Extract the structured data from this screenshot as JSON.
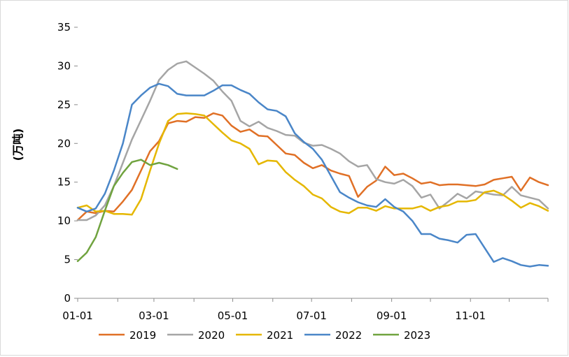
{
  "chart_data": {
    "type": "line",
    "ylabel": "(万吨)",
    "xlabel": "",
    "ylim": [
      0,
      35
    ],
    "yticks": [
      0,
      5,
      10,
      15,
      20,
      25,
      30,
      35
    ],
    "xlim": [
      "01-01",
      "12-31"
    ],
    "xtick_labels": [
      "01-01",
      "03-01",
      "05-01",
      "07-01",
      "09-01",
      "11-01"
    ],
    "grid": false,
    "legend_position": "bottom",
    "series": [
      {
        "name": "2019",
        "color": "#E07026",
        "points": [
          [
            "01-01",
            10.1
          ],
          [
            "01-08",
            11.2
          ],
          [
            "01-15",
            11.0
          ],
          [
            "01-22",
            11.3
          ],
          [
            "01-29",
            11.2
          ],
          [
            "02-05",
            12.5
          ],
          [
            "02-12",
            14.0
          ],
          [
            "02-19",
            16.5
          ],
          [
            "02-26",
            19.0
          ],
          [
            "03-05",
            20.3
          ],
          [
            "03-12",
            22.6
          ],
          [
            "03-19",
            22.9
          ],
          [
            "03-26",
            22.8
          ],
          [
            "04-02",
            23.4
          ],
          [
            "04-09",
            23.3
          ],
          [
            "04-16",
            23.9
          ],
          [
            "04-23",
            23.6
          ],
          [
            "04-30",
            22.3
          ],
          [
            "05-07",
            21.5
          ],
          [
            "05-14",
            21.8
          ],
          [
            "05-21",
            21.0
          ],
          [
            "05-28",
            20.9
          ],
          [
            "06-04",
            19.8
          ],
          [
            "06-11",
            18.7
          ],
          [
            "06-18",
            18.5
          ],
          [
            "06-25",
            17.5
          ],
          [
            "07-02",
            16.8
          ],
          [
            "07-09",
            17.2
          ],
          [
            "07-16",
            16.5
          ],
          [
            "07-23",
            16.1
          ],
          [
            "07-30",
            15.8
          ],
          [
            "08-06",
            13.1
          ],
          [
            "08-13",
            14.4
          ],
          [
            "08-20",
            15.2
          ],
          [
            "08-27",
            17.0
          ],
          [
            "09-03",
            15.9
          ],
          [
            "09-10",
            16.1
          ],
          [
            "09-17",
            15.5
          ],
          [
            "09-24",
            14.8
          ],
          [
            "10-01",
            15.0
          ],
          [
            "10-08",
            14.6
          ],
          [
            "10-15",
            14.7
          ],
          [
            "10-22",
            14.7
          ],
          [
            "10-29",
            14.6
          ],
          [
            "11-05",
            14.5
          ],
          [
            "11-12",
            14.7
          ],
          [
            "11-19",
            15.3
          ],
          [
            "11-26",
            15.5
          ],
          [
            "12-03",
            15.7
          ],
          [
            "12-10",
            13.9
          ],
          [
            "12-17",
            15.6
          ],
          [
            "12-24",
            15.0
          ],
          [
            "12-31",
            14.6
          ]
        ]
      },
      {
        "name": "2020",
        "color": "#A5A5A5",
        "points": [
          [
            "01-01",
            10.1
          ],
          [
            "01-08",
            10.1
          ],
          [
            "01-15",
            10.7
          ],
          [
            "01-22",
            12.0
          ],
          [
            "01-29",
            14.5
          ],
          [
            "02-05",
            17.5
          ],
          [
            "02-12",
            20.5
          ],
          [
            "02-19",
            23.0
          ],
          [
            "02-26",
            25.5
          ],
          [
            "03-05",
            28.2
          ],
          [
            "03-12",
            29.5
          ],
          [
            "03-19",
            30.3
          ],
          [
            "03-26",
            30.6
          ],
          [
            "04-02",
            29.8
          ],
          [
            "04-09",
            29.0
          ],
          [
            "04-16",
            28.1
          ],
          [
            "04-23",
            26.7
          ],
          [
            "04-30",
            25.5
          ],
          [
            "05-07",
            22.9
          ],
          [
            "05-14",
            22.2
          ],
          [
            "05-21",
            22.8
          ],
          [
            "05-28",
            22.0
          ],
          [
            "06-04",
            21.6
          ],
          [
            "06-11",
            21.1
          ],
          [
            "06-18",
            21.0
          ],
          [
            "06-25",
            20.1
          ],
          [
            "07-02",
            19.7
          ],
          [
            "07-09",
            19.8
          ],
          [
            "07-16",
            19.3
          ],
          [
            "07-23",
            18.7
          ],
          [
            "07-30",
            17.7
          ],
          [
            "08-06",
            17.0
          ],
          [
            "08-13",
            17.2
          ],
          [
            "08-20",
            15.4
          ],
          [
            "08-27",
            15.0
          ],
          [
            "09-03",
            14.8
          ],
          [
            "09-10",
            15.3
          ],
          [
            "09-17",
            14.5
          ],
          [
            "09-24",
            13.0
          ],
          [
            "10-01",
            13.4
          ],
          [
            "10-08",
            11.6
          ],
          [
            "10-15",
            12.5
          ],
          [
            "10-22",
            13.5
          ],
          [
            "10-29",
            12.9
          ],
          [
            "11-05",
            13.8
          ],
          [
            "11-12",
            13.6
          ],
          [
            "11-19",
            13.4
          ],
          [
            "11-26",
            13.3
          ],
          [
            "12-03",
            14.4
          ],
          [
            "12-10",
            13.3
          ],
          [
            "12-17",
            13.0
          ],
          [
            "12-24",
            12.7
          ],
          [
            "12-31",
            11.6
          ]
        ]
      },
      {
        "name": "2021",
        "color": "#E5B700",
        "points": [
          [
            "01-01",
            11.7
          ],
          [
            "01-08",
            12.0
          ],
          [
            "01-15",
            11.2
          ],
          [
            "01-22",
            11.3
          ],
          [
            "01-29",
            10.9
          ],
          [
            "02-05",
            10.9
          ],
          [
            "02-12",
            10.8
          ],
          [
            "02-19",
            12.8
          ],
          [
            "02-26",
            16.5
          ],
          [
            "03-05",
            20.0
          ],
          [
            "03-12",
            22.9
          ],
          [
            "03-19",
            23.8
          ],
          [
            "03-26",
            23.9
          ],
          [
            "04-02",
            23.8
          ],
          [
            "04-09",
            23.6
          ],
          [
            "04-16",
            22.5
          ],
          [
            "04-23",
            21.4
          ],
          [
            "04-30",
            20.4
          ],
          [
            "05-07",
            20.0
          ],
          [
            "05-14",
            19.3
          ],
          [
            "05-21",
            17.3
          ],
          [
            "05-28",
            17.8
          ],
          [
            "06-04",
            17.7
          ],
          [
            "06-11",
            16.3
          ],
          [
            "06-18",
            15.3
          ],
          [
            "06-25",
            14.5
          ],
          [
            "07-02",
            13.4
          ],
          [
            "07-09",
            12.9
          ],
          [
            "07-16",
            11.8
          ],
          [
            "07-23",
            11.2
          ],
          [
            "07-30",
            11.0
          ],
          [
            "08-06",
            11.7
          ],
          [
            "08-13",
            11.7
          ],
          [
            "08-20",
            11.3
          ],
          [
            "08-27",
            11.9
          ],
          [
            "09-03",
            11.6
          ],
          [
            "09-10",
            11.6
          ],
          [
            "09-17",
            11.6
          ],
          [
            "09-24",
            11.9
          ],
          [
            "10-01",
            11.3
          ],
          [
            "10-08",
            11.8
          ],
          [
            "10-15",
            12.0
          ],
          [
            "10-22",
            12.5
          ],
          [
            "10-29",
            12.5
          ],
          [
            "11-05",
            12.7
          ],
          [
            "11-12",
            13.7
          ],
          [
            "11-19",
            13.9
          ],
          [
            "11-26",
            13.4
          ],
          [
            "12-03",
            12.6
          ],
          [
            "12-10",
            11.7
          ],
          [
            "12-17",
            12.3
          ],
          [
            "12-24",
            11.9
          ],
          [
            "12-31",
            11.3
          ]
        ]
      },
      {
        "name": "2022",
        "color": "#4A86C8",
        "points": [
          [
            "01-01",
            11.7
          ],
          [
            "01-08",
            11.2
          ],
          [
            "01-15",
            11.6
          ],
          [
            "01-22",
            13.5
          ],
          [
            "01-29",
            16.5
          ],
          [
            "02-05",
            20.0
          ],
          [
            "02-12",
            25.0
          ],
          [
            "02-19",
            26.2
          ],
          [
            "02-26",
            27.2
          ],
          [
            "03-05",
            27.7
          ],
          [
            "03-12",
            27.4
          ],
          [
            "03-19",
            26.4
          ],
          [
            "03-26",
            26.2
          ],
          [
            "04-02",
            26.2
          ],
          [
            "04-09",
            26.2
          ],
          [
            "04-16",
            26.8
          ],
          [
            "04-23",
            27.5
          ],
          [
            "04-30",
            27.5
          ],
          [
            "05-07",
            26.9
          ],
          [
            "05-14",
            26.4
          ],
          [
            "05-21",
            25.3
          ],
          [
            "05-28",
            24.4
          ],
          [
            "06-04",
            24.2
          ],
          [
            "06-11",
            23.5
          ],
          [
            "06-18",
            21.3
          ],
          [
            "06-25",
            20.2
          ],
          [
            "07-02",
            19.3
          ],
          [
            "07-09",
            17.9
          ],
          [
            "07-16",
            15.8
          ],
          [
            "07-23",
            13.7
          ],
          [
            "07-30",
            13.0
          ],
          [
            "08-06",
            12.4
          ],
          [
            "08-13",
            12.0
          ],
          [
            "08-20",
            11.8
          ],
          [
            "08-27",
            12.8
          ],
          [
            "09-03",
            11.8
          ],
          [
            "09-10",
            11.2
          ],
          [
            "09-17",
            10.0
          ],
          [
            "09-24",
            8.3
          ],
          [
            "10-01",
            8.3
          ],
          [
            "10-08",
            7.7
          ],
          [
            "10-15",
            7.5
          ],
          [
            "10-22",
            7.2
          ],
          [
            "10-29",
            8.2
          ],
          [
            "11-05",
            8.3
          ],
          [
            "11-12",
            6.5
          ],
          [
            "11-19",
            4.7
          ],
          [
            "11-26",
            5.2
          ],
          [
            "12-03",
            4.8
          ],
          [
            "12-10",
            4.3
          ],
          [
            "12-17",
            4.1
          ],
          [
            "12-24",
            4.3
          ],
          [
            "12-31",
            4.2
          ]
        ]
      },
      {
        "name": "2023",
        "color": "#70A33F",
        "points": [
          [
            "01-01",
            4.8
          ],
          [
            "01-08",
            5.9
          ],
          [
            "01-15",
            7.9
          ],
          [
            "01-22",
            11.3
          ],
          [
            "01-29",
            14.5
          ],
          [
            "02-05",
            16.2
          ],
          [
            "02-12",
            17.6
          ],
          [
            "02-19",
            17.9
          ],
          [
            "02-26",
            17.2
          ],
          [
            "03-05",
            17.5
          ],
          [
            "03-12",
            17.2
          ],
          [
            "03-19",
            16.7
          ]
        ]
      }
    ]
  }
}
